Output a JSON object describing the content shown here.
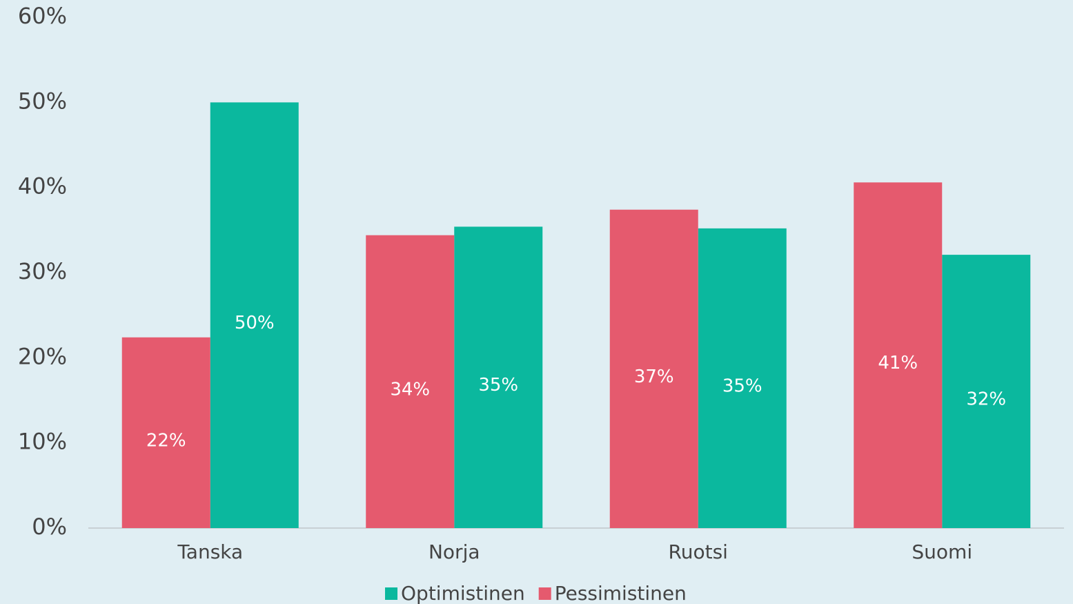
{
  "chart_data": {
    "type": "bar",
    "categories": [
      "Tanska",
      "Norja",
      "Ruotsi",
      "Suomi"
    ],
    "series": [
      {
        "name": "Optimistinen",
        "color": "#0bb89e",
        "values": [
          50,
          35.4,
          35.2,
          32.1
        ],
        "value_labels": [
          "50%",
          "35%",
          "35%",
          "32%"
        ]
      },
      {
        "name": "Pessimistinen",
        "color": "#e55a6e",
        "values": [
          22.4,
          34.4,
          37.4,
          40.6
        ],
        "value_labels": [
          "22%",
          "34%",
          "37%",
          "41%"
        ]
      }
    ],
    "ylim": [
      0,
      60
    ],
    "yticks": [
      {
        "value": 0,
        "label": "0%"
      },
      {
        "value": 10,
        "label": "10%"
      },
      {
        "value": 20,
        "label": "20%"
      },
      {
        "value": 30,
        "label": "30%"
      },
      {
        "value": 40,
        "label": "40%"
      },
      {
        "value": 50,
        "label": "50%"
      },
      {
        "value": 60,
        "label": "60%"
      }
    ],
    "grid": false,
    "legend": "bottom"
  }
}
